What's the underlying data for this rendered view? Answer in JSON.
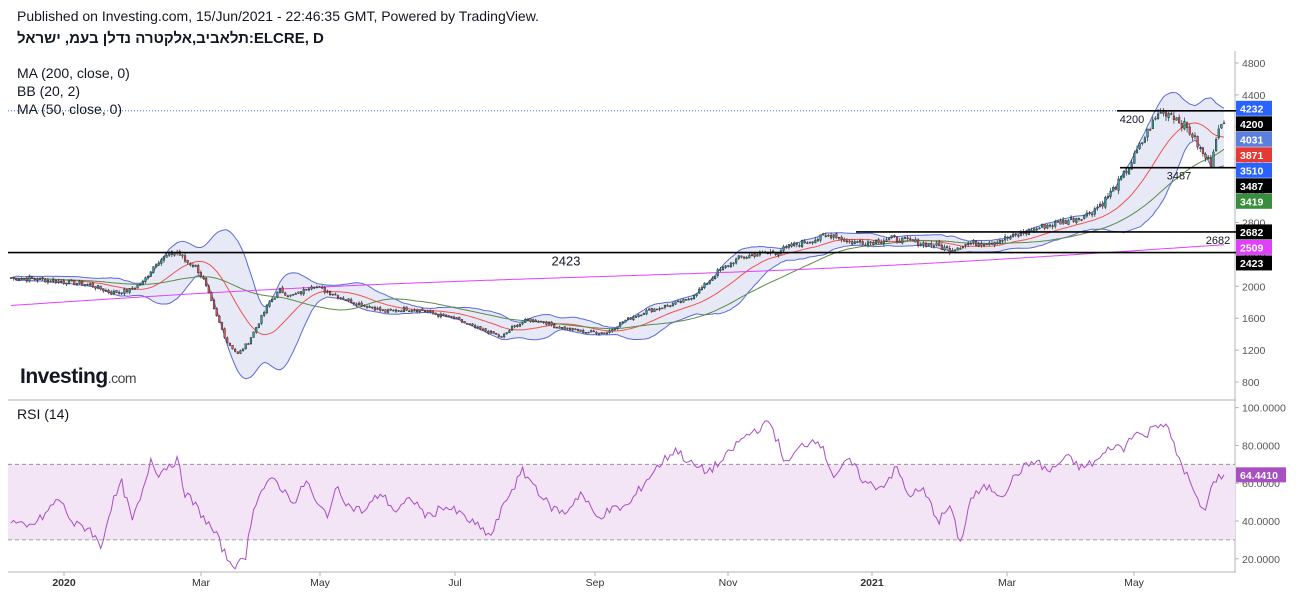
{
  "header": {
    "published": "Published on Investing.com, 15/Jun/2021 - 22:46:35 GMT, Powered by TradingView.",
    "symbol": "תלאביב,אלקטרה נדלן בעמ, ישראל:ELCRE, D"
  },
  "indicators": [
    "MA (200, close, 0)",
    "BB (20, 2)",
    "MA (50, close, 0)"
  ],
  "logo": {
    "brand": "Investing",
    "suffix": ".com"
  },
  "colors": {
    "candle_up": "#26a69a",
    "candle_down": "#ef5350",
    "bb_band": "#5b6bd6",
    "bb_fill": "#e3e6f5",
    "ma200": "#e040fb",
    "ma50": "#5d8a4a",
    "bb_basis": "#ef5350",
    "rsi_line": "#a84fc3",
    "rsi_band": "#f3e5f5"
  },
  "chart_data": {
    "type": "candlestick",
    "interval": "D",
    "y_axis": {
      "ticks": [
        800,
        1200,
        1600,
        2000,
        2400,
        2800,
        3200,
        3600,
        4000,
        4400,
        4800
      ],
      "range": [
        600,
        4900
      ]
    },
    "x_axis": {
      "labels": [
        "2020",
        "Mar",
        "May",
        "Jul",
        "Sep",
        "Nov",
        "2021",
        "Mar",
        "May"
      ],
      "bold_labels": [
        "2020",
        "2021"
      ]
    },
    "horizontal_lines": [
      {
        "value": 2423,
        "label": "2423",
        "extent": "full"
      },
      {
        "value": 2682,
        "label": "2682",
        "extent": "partial"
      },
      {
        "value": 3487,
        "label": "3487",
        "extent": "partial"
      },
      {
        "value": 4200,
        "label": "4200",
        "extent": "partial"
      }
    ],
    "price_line": 4200,
    "axis_badges": [
      {
        "label": "4232",
        "value": 4232,
        "color": "#2962ff"
      },
      {
        "label": "4200",
        "value": 4200,
        "color": "#000000"
      },
      {
        "label": "4031",
        "value": 4031,
        "color": "#5b7fde"
      },
      {
        "label": "3871",
        "value": 3871,
        "color": "#e53935"
      },
      {
        "label": "3510",
        "value": 3510,
        "color": "#2962ff"
      },
      {
        "label": "3487",
        "value": 3487,
        "color": "#000000"
      },
      {
        "label": "3419",
        "value": 3419,
        "color": "#388e3c"
      },
      {
        "label": "2682",
        "value": 2682,
        "color": "#000000"
      },
      {
        "label": "2509",
        "value": 2509,
        "color": "#e040fb"
      },
      {
        "label": "2423",
        "value": 2423,
        "color": "#000000"
      }
    ],
    "close_keypoints": [
      [
        0,
        2110
      ],
      [
        10,
        2090
      ],
      [
        20,
        2060
      ],
      [
        30,
        2020
      ],
      [
        38,
        1920
      ],
      [
        45,
        1950
      ],
      [
        50,
        2050
      ],
      [
        55,
        2300
      ],
      [
        60,
        2400
      ],
      [
        63,
        2430
      ],
      [
        66,
        2320
      ],
      [
        70,
        2250
      ],
      [
        73,
        2080
      ],
      [
        77,
        1700
      ],
      [
        82,
        1300
      ],
      [
        86,
        1150
      ],
      [
        90,
        1300
      ],
      [
        94,
        1550
      ],
      [
        98,
        1800
      ],
      [
        102,
        1950
      ],
      [
        106,
        1880
      ],
      [
        110,
        1920
      ],
      [
        114,
        2020
      ],
      [
        118,
        1960
      ],
      [
        124,
        1880
      ],
      [
        130,
        1800
      ],
      [
        136,
        1750
      ],
      [
        142,
        1680
      ],
      [
        150,
        1720
      ],
      [
        156,
        1700
      ],
      [
        162,
        1640
      ],
      [
        168,
        1600
      ],
      [
        176,
        1480
      ],
      [
        182,
        1420
      ],
      [
        186,
        1360
      ],
      [
        190,
        1480
      ],
      [
        196,
        1580
      ],
      [
        202,
        1560
      ],
      [
        206,
        1500
      ],
      [
        212,
        1460
      ],
      [
        218,
        1430
      ],
      [
        226,
        1420
      ],
      [
        232,
        1560
      ],
      [
        240,
        1680
      ],
      [
        248,
        1750
      ],
      [
        256,
        1820
      ],
      [
        262,
        1980
      ],
      [
        268,
        2180
      ],
      [
        276,
        2350
      ],
      [
        282,
        2400
      ],
      [
        290,
        2430
      ],
      [
        298,
        2530
      ],
      [
        306,
        2600
      ],
      [
        312,
        2650
      ],
      [
        318,
        2550
      ],
      [
        326,
        2560
      ],
      [
        334,
        2600
      ],
      [
        342,
        2560
      ],
      [
        350,
        2520
      ],
      [
        356,
        2460
      ],
      [
        362,
        2530
      ],
      [
        372,
        2560
      ],
      [
        382,
        2640
      ],
      [
        392,
        2760
      ],
      [
        400,
        2820
      ],
      [
        408,
        2900
      ],
      [
        414,
        3050
      ],
      [
        420,
        3300
      ],
      [
        424,
        3500
      ],
      [
        428,
        3750
      ],
      [
        432,
        4000
      ],
      [
        436,
        4200
      ],
      [
        440,
        4170
      ],
      [
        444,
        4050
      ],
      [
        448,
        3900
      ],
      [
        452,
        3650
      ],
      [
        455,
        3550
      ],
      [
        457,
        3900
      ],
      [
        460,
        4031
      ]
    ],
    "rsi": {
      "title": "RSI (14)",
      "last_value": "64.4410",
      "ticks": [
        20,
        40,
        60,
        80,
        100
      ],
      "tick_labels": [
        "20.0000",
        "40.0000",
        "60.0000",
        "80.0000",
        "100.0000"
      ],
      "overbought": 70,
      "oversold": 30,
      "range": [
        13,
        103
      ],
      "keypoints": [
        [
          0,
          40
        ],
        [
          6,
          36
        ],
        [
          12,
          42
        ],
        [
          18,
          52
        ],
        [
          24,
          38
        ],
        [
          30,
          36
        ],
        [
          34,
          26
        ],
        [
          38,
          48
        ],
        [
          42,
          60
        ],
        [
          46,
          40
        ],
        [
          50,
          55
        ],
        [
          53,
          73
        ],
        [
          56,
          65
        ],
        [
          60,
          70
        ],
        [
          63,
          72
        ],
        [
          66,
          55
        ],
        [
          70,
          48
        ],
        [
          74,
          40
        ],
        [
          78,
          32
        ],
        [
          82,
          20
        ],
        [
          86,
          16
        ],
        [
          89,
          22
        ],
        [
          92,
          48
        ],
        [
          96,
          58
        ],
        [
          100,
          62
        ],
        [
          104,
          55
        ],
        [
          108,
          50
        ],
        [
          112,
          62
        ],
        [
          116,
          48
        ],
        [
          120,
          44
        ],
        [
          124,
          58
        ],
        [
          128,
          48
        ],
        [
          134,
          45
        ],
        [
          140,
          55
        ],
        [
          146,
          45
        ],
        [
          152,
          52
        ],
        [
          158,
          42
        ],
        [
          164,
          48
        ],
        [
          170,
          44
        ],
        [
          176,
          38
        ],
        [
          182,
          32
        ],
        [
          188,
          52
        ],
        [
          194,
          66
        ],
        [
          198,
          60
        ],
        [
          204,
          48
        ],
        [
          210,
          44
        ],
        [
          216,
          55
        ],
        [
          222,
          42
        ],
        [
          228,
          46
        ],
        [
          234,
          48
        ],
        [
          240,
          60
        ],
        [
          246,
          70
        ],
        [
          252,
          78
        ],
        [
          258,
          70
        ],
        [
          264,
          66
        ],
        [
          270,
          72
        ],
        [
          276,
          82
        ],
        [
          282,
          88
        ],
        [
          288,
          92
        ],
        [
          294,
          70
        ],
        [
          300,
          80
        ],
        [
          306,
          84
        ],
        [
          312,
          64
        ],
        [
          318,
          72
        ],
        [
          324,
          60
        ],
        [
          330,
          58
        ],
        [
          336,
          68
        ],
        [
          340,
          54
        ],
        [
          346,
          56
        ],
        [
          352,
          40
        ],
        [
          356,
          48
        ],
        [
          360,
          28
        ],
        [
          364,
          52
        ],
        [
          370,
          58
        ],
        [
          376,
          54
        ],
        [
          382,
          66
        ],
        [
          388,
          72
        ],
        [
          394,
          66
        ],
        [
          400,
          74
        ],
        [
          406,
          68
        ],
        [
          412,
          72
        ],
        [
          418,
          80
        ],
        [
          422,
          78
        ],
        [
          426,
          88
        ],
        [
          430,
          84
        ],
        [
          434,
          92
        ],
        [
          438,
          91
        ],
        [
          442,
          76
        ],
        [
          446,
          64
        ],
        [
          450,
          50
        ],
        [
          453,
          45
        ],
        [
          456,
          62
        ],
        [
          460,
          64.441
        ]
      ]
    }
  }
}
